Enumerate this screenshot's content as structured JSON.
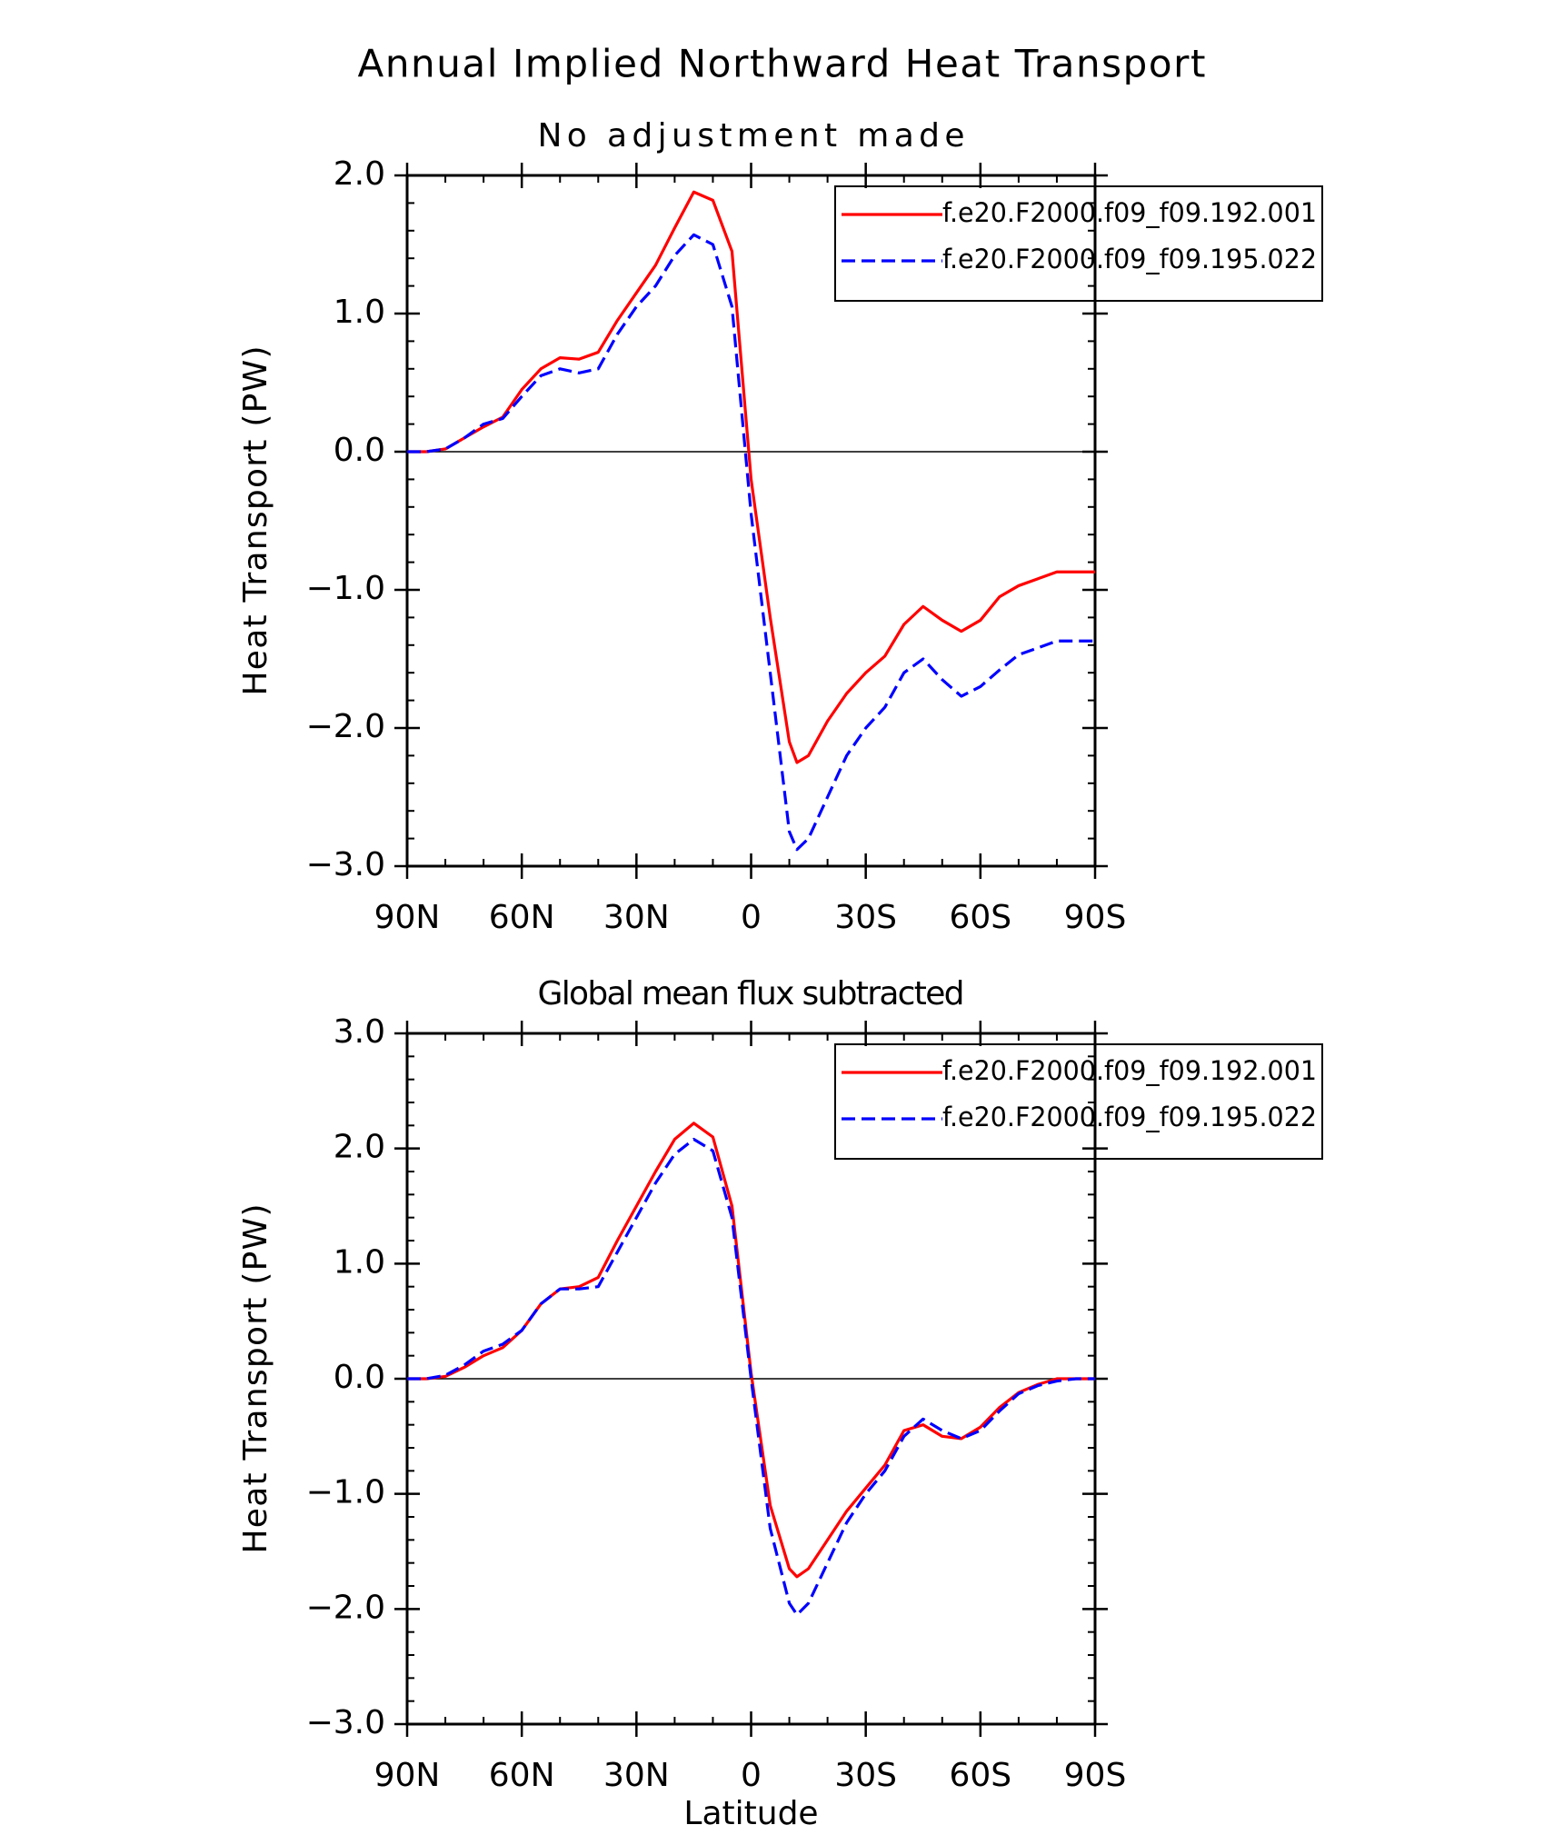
{
  "title": "Annual Implied Northward Heat Transport",
  "chart_data": [
    {
      "type": "line",
      "title": "No adjustment made",
      "ylabel": "Heat Transport (PW)",
      "x": [
        90,
        85,
        80,
        75,
        70,
        65,
        60,
        55,
        50,
        45,
        40,
        35,
        30,
        25,
        20,
        15,
        10,
        5,
        0,
        -5,
        -10,
        -12,
        -15,
        -20,
        -25,
        -30,
        -35,
        -40,
        -45,
        -50,
        -55,
        -60,
        -65,
        -70,
        -75,
        -80,
        -85,
        -90
      ],
      "xlim": [
        90,
        -90
      ],
      "xticks": [
        {
          "value": 90,
          "label": "90N"
        },
        {
          "value": 60,
          "label": "60N"
        },
        {
          "value": 30,
          "label": "30N"
        },
        0,
        {
          "value": -30,
          "label": "30S"
        },
        {
          "value": -60,
          "label": "60S"
        },
        {
          "value": -90,
          "label": "90S"
        }
      ],
      "ylim": [
        -3.0,
        2.0
      ],
      "yticks": [
        {
          "value": 2,
          "label": "2.0"
        },
        {
          "value": 1,
          "label": "1.0"
        },
        {
          "value": 0,
          "label": "0.0"
        },
        {
          "value": -1,
          "label": "−1.0"
        },
        {
          "value": -2,
          "label": "−2.0"
        },
        {
          "value": -3,
          "label": "−3.0"
        }
      ],
      "legend": "upper right",
      "series": [
        {
          "name": "f.e20.F2000.f09_f09.192.001",
          "color": "#ff0000",
          "style": "solid",
          "values": [
            0,
            0,
            0.02,
            0.1,
            0.18,
            0.25,
            0.45,
            0.6,
            0.68,
            0.67,
            0.72,
            0.95,
            1.15,
            1.35,
            1.62,
            1.88,
            1.82,
            1.45,
            -0.2,
            -1.2,
            -2.1,
            -2.25,
            -2.2,
            -1.95,
            -1.75,
            -1.6,
            -1.48,
            -1.25,
            -1.12,
            -1.22,
            -1.3,
            -1.22,
            -1.05,
            -0.97,
            -0.92,
            -0.87,
            -0.87,
            -0.87
          ]
        },
        {
          "name": "f.e20.F2000.f09_f09.195.022",
          "color": "#0000ff",
          "style": "dashed",
          "values": [
            0,
            0,
            0.02,
            0.1,
            0.2,
            0.24,
            0.4,
            0.55,
            0.6,
            0.57,
            0.6,
            0.85,
            1.05,
            1.2,
            1.42,
            1.57,
            1.5,
            1.05,
            -0.45,
            -1.6,
            -2.75,
            -2.88,
            -2.8,
            -2.5,
            -2.2,
            -2.0,
            -1.85,
            -1.6,
            -1.5,
            -1.65,
            -1.77,
            -1.7,
            -1.58,
            -1.47,
            -1.42,
            -1.37,
            -1.37,
            -1.37
          ]
        }
      ]
    },
    {
      "type": "line",
      "title": "Global mean flux subtracted",
      "ylabel": "Heat Transport (PW)",
      "xlabel": "Latitude",
      "x": [
        90,
        85,
        80,
        75,
        70,
        65,
        60,
        55,
        50,
        45,
        40,
        35,
        30,
        25,
        20,
        15,
        10,
        5,
        0,
        -5,
        -10,
        -12,
        -15,
        -20,
        -25,
        -30,
        -35,
        -40,
        -45,
        -50,
        -55,
        -60,
        -65,
        -70,
        -75,
        -80,
        -85,
        -90
      ],
      "xlim": [
        90,
        -90
      ],
      "xticks": [
        {
          "value": 90,
          "label": "90N"
        },
        {
          "value": 60,
          "label": "60N"
        },
        {
          "value": 30,
          "label": "30N"
        },
        0,
        {
          "value": -30,
          "label": "30S"
        },
        {
          "value": -60,
          "label": "60S"
        },
        {
          "value": -90,
          "label": "90S"
        }
      ],
      "ylim": [
        -3.0,
        3.0
      ],
      "yticks": [
        {
          "value": 3,
          "label": "3.0"
        },
        {
          "value": 2,
          "label": "2.0"
        },
        {
          "value": 1,
          "label": "1.0"
        },
        {
          "value": 0,
          "label": "0.0"
        },
        {
          "value": -1,
          "label": "−1.0"
        },
        {
          "value": -2,
          "label": "−2.0"
        },
        {
          "value": -3,
          "label": "−3.0"
        }
      ],
      "legend": "upper right",
      "series": [
        {
          "name": "f.e20.F2000.f09_f09.192.001",
          "color": "#ff0000",
          "style": "solid",
          "values": [
            0,
            0,
            0.02,
            0.1,
            0.2,
            0.27,
            0.42,
            0.65,
            0.78,
            0.8,
            0.88,
            1.2,
            1.5,
            1.8,
            2.08,
            2.22,
            2.1,
            1.5,
            0.05,
            -1.1,
            -1.65,
            -1.72,
            -1.65,
            -1.4,
            -1.15,
            -0.95,
            -0.75,
            -0.45,
            -0.4,
            -0.5,
            -0.52,
            -0.42,
            -0.25,
            -0.12,
            -0.05,
            0,
            0,
            0
          ]
        },
        {
          "name": "f.e20.F2000.f09_f09.195.022",
          "color": "#0000ff",
          "style": "dashed",
          "values": [
            0,
            0,
            0.03,
            0.12,
            0.24,
            0.3,
            0.42,
            0.65,
            0.78,
            0.78,
            0.8,
            1.1,
            1.4,
            1.7,
            1.95,
            2.08,
            1.98,
            1.4,
            0,
            -1.3,
            -1.95,
            -2.05,
            -1.95,
            -1.6,
            -1.25,
            -1.0,
            -0.8,
            -0.5,
            -0.35,
            -0.45,
            -0.52,
            -0.45,
            -0.28,
            -0.13,
            -0.06,
            -0.02,
            0,
            0
          ]
        }
      ]
    }
  ]
}
